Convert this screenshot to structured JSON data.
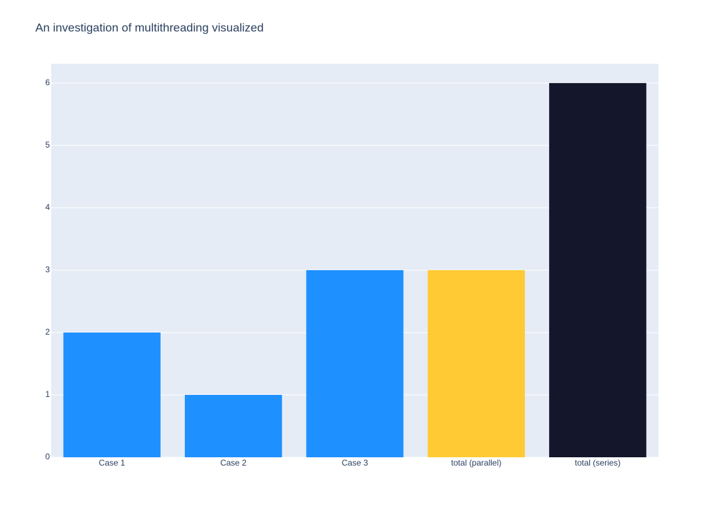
{
  "chart_data": {
    "type": "bar",
    "title": "An investigation of multithreading visualized",
    "categories": [
      "Case 1",
      "Case 2",
      "Case 3",
      "total (parallel)",
      "total (series)"
    ],
    "values": [
      2,
      1,
      3,
      3,
      6
    ],
    "colors": [
      "#1e90ff",
      "#1e90ff",
      "#1e90ff",
      "#ffca33",
      "#14162b"
    ],
    "ylim": [
      0,
      6.31
    ],
    "yticks": [
      0,
      1,
      2,
      3,
      4,
      5,
      6
    ],
    "grid": true
  }
}
